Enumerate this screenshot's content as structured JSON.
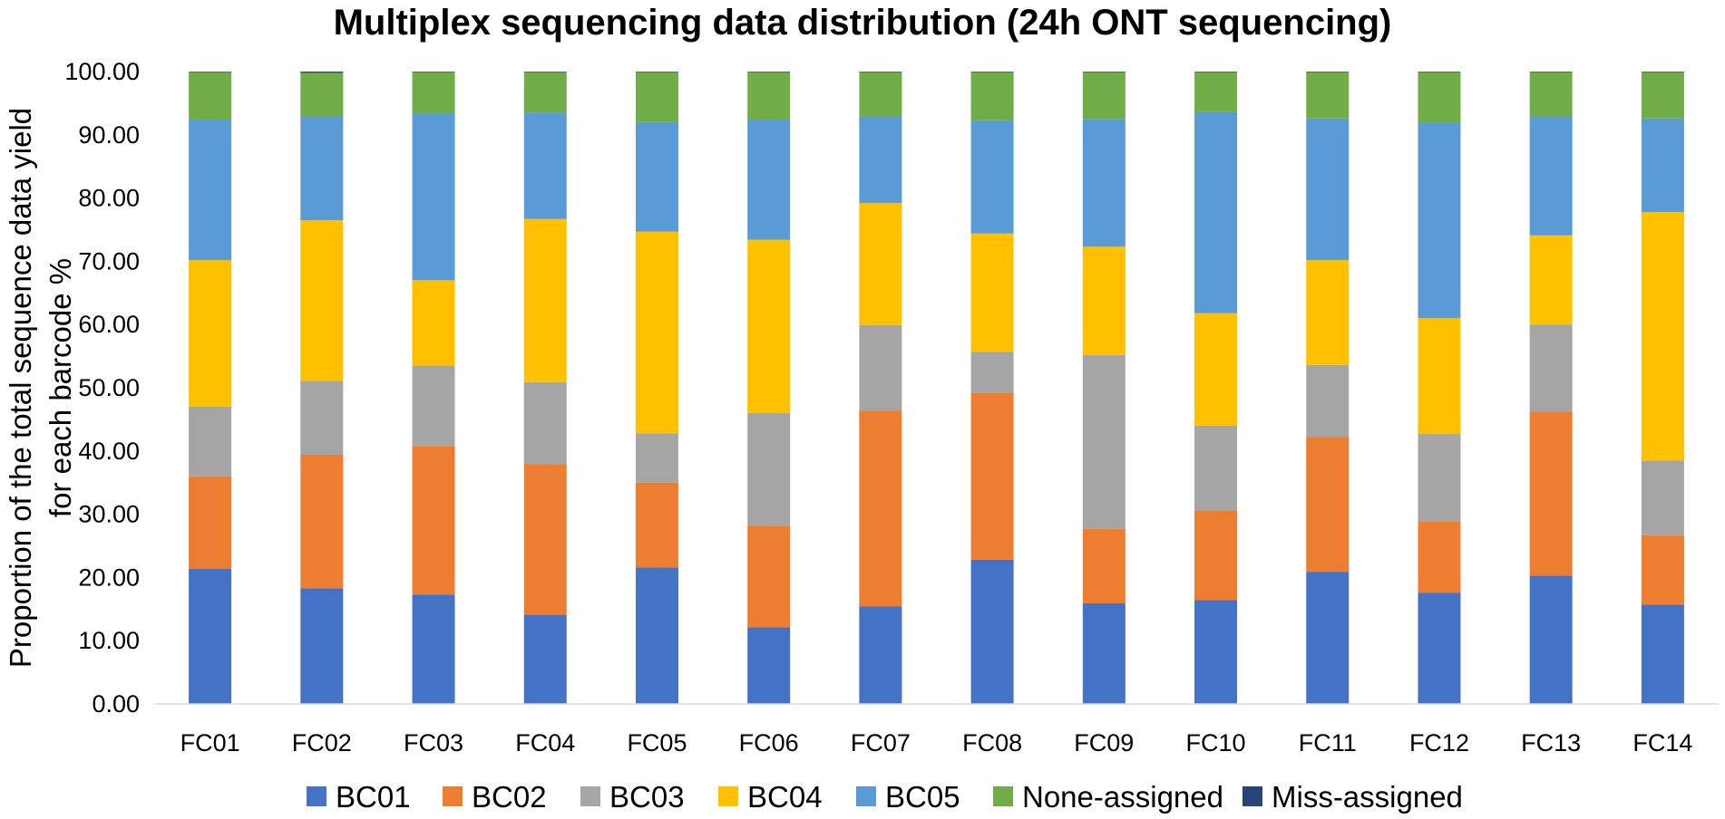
{
  "chart_data": {
    "type": "bar",
    "stacked": true,
    "title": "Multiplex sequencing data distribution (24h ONT sequencing)",
    "xlabel": "",
    "ylabel_lines": [
      "Proportion of the total sequence data yield",
      "for each barcode %"
    ],
    "ylim": [
      0,
      100
    ],
    "yticks": [
      "0.00",
      "10.00",
      "20.00",
      "30.00",
      "40.00",
      "50.00",
      "60.00",
      "70.00",
      "80.00",
      "90.00",
      "100.00"
    ],
    "grid": false,
    "legend_position": "bottom",
    "categories": [
      "FC01",
      "FC02",
      "FC03",
      "FC04",
      "FC05",
      "FC06",
      "FC07",
      "FC08",
      "FC09",
      "FC10",
      "FC11",
      "FC12",
      "FC13",
      "FC14"
    ],
    "series": [
      {
        "name": "BC01",
        "color": "#4472C4",
        "values": [
          21.4,
          18.3,
          17.3,
          14.1,
          21.6,
          12.1,
          15.4,
          22.8,
          15.9,
          16.4,
          20.9,
          17.6,
          20.3,
          15.7
        ]
      },
      {
        "name": "BC02",
        "color": "#ED7D31",
        "values": [
          14.6,
          21.1,
          23.5,
          23.8,
          13.4,
          16.1,
          31.0,
          26.4,
          11.8,
          14.2,
          21.3,
          11.3,
          25.9,
          11.0
        ]
      },
      {
        "name": "BC03",
        "color": "#A5A5A5",
        "values": [
          11.0,
          11.7,
          12.7,
          13.0,
          7.8,
          17.8,
          13.5,
          6.5,
          27.5,
          13.4,
          11.4,
          13.8,
          13.8,
          11.8
        ]
      },
      {
        "name": "BC04",
        "color": "#FFC000",
        "values": [
          23.2,
          25.4,
          13.5,
          25.8,
          31.9,
          27.4,
          19.3,
          18.7,
          17.1,
          17.8,
          16.6,
          18.3,
          14.1,
          39.3
        ]
      },
      {
        "name": "BC05",
        "color": "#5B9BD5",
        "values": [
          22.2,
          16.4,
          26.4,
          16.8,
          17.3,
          19.0,
          13.7,
          17.9,
          20.2,
          31.8,
          22.4,
          30.9,
          18.8,
          14.8
        ]
      },
      {
        "name": "None-assigned",
        "color": "#70AD47",
        "values": [
          7.5,
          6.9,
          6.5,
          6.4,
          7.9,
          7.5,
          7.0,
          7.6,
          7.4,
          6.3,
          7.3,
          8.0,
          7.0,
          7.3
        ]
      },
      {
        "name": "Miss-assigned",
        "color": "#264478",
        "values": [
          0.1,
          0.2,
          0.1,
          0.1,
          0.1,
          0.1,
          0.1,
          0.1,
          0.1,
          0.1,
          0.1,
          0.1,
          0.1,
          0.1
        ]
      }
    ]
  }
}
